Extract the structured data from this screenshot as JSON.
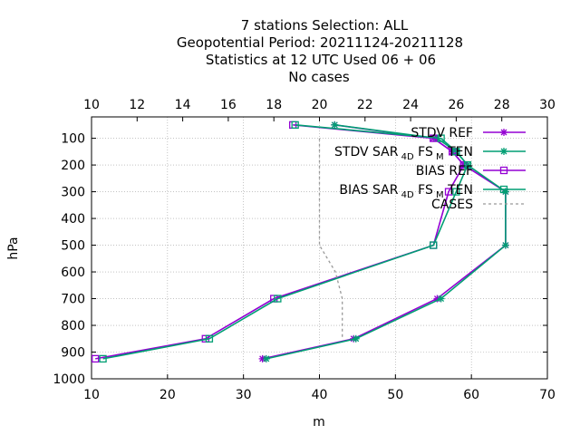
{
  "chart_data": {
    "type": "line",
    "title_lines": [
      "7 stations Selection: ALL",
      "Geopotential  Period: 20211124-20211128",
      "Statistics at 12 UTC  Used  06 + 06",
      "No cases"
    ],
    "xlabel": "m",
    "ylabel": "hPa",
    "xlim": [
      10,
      70
    ],
    "ylim": [
      1000,
      20
    ],
    "y_reversed": true,
    "x_ticks": [
      "10",
      "20",
      "30",
      "40",
      "50",
      "60",
      "70"
    ],
    "y_ticks": [
      "100",
      "200",
      "300",
      "400",
      "500",
      "600",
      "700",
      "800",
      "900",
      "1000"
    ],
    "x2_label": "",
    "x2lim": [
      10,
      30
    ],
    "x2_ticks": [
      "10",
      "12",
      "14",
      "16",
      "18",
      "20",
      "22",
      "24",
      "26",
      "28",
      "30"
    ],
    "grid": true,
    "legend_position": "top-right",
    "series": [
      {
        "name": "STDV REF",
        "legend": [
          {
            "t": "STDV REF"
          }
        ],
        "color": "#9400d3",
        "marker": "star",
        "axis": "x1",
        "points": [
          [
            42.0,
            50
          ],
          [
            55.0,
            100
          ],
          [
            57.5,
            150
          ],
          [
            59.0,
            200
          ],
          [
            64.5,
            300
          ],
          [
            64.5,
            500
          ],
          [
            55.5,
            700
          ],
          [
            44.5,
            850
          ],
          [
            32.5,
            925
          ]
        ]
      },
      {
        "name": "STDV SAR 4D FS M TEN",
        "legend": [
          {
            "t": "STDV SAR"
          },
          {
            "t": "4D",
            "sub": true
          },
          {
            "t": "FS"
          },
          {
            "t": "M",
            "sub": true
          },
          {
            "t": "TEN"
          }
        ],
        "color": "#009e73",
        "marker": "star",
        "axis": "x1",
        "points": [
          [
            42.0,
            50
          ],
          [
            55.5,
            100
          ],
          [
            58.0,
            150
          ],
          [
            59.5,
            200
          ],
          [
            64.5,
            300
          ],
          [
            64.5,
            500
          ],
          [
            56.0,
            700
          ],
          [
            44.8,
            850
          ],
          [
            33.0,
            925
          ]
        ]
      },
      {
        "name": "BIAS REF",
        "legend": [
          {
            "t": "BIAS REF"
          }
        ],
        "color": "#9400d3",
        "marker": "square",
        "axis": "x1",
        "points": [
          [
            36.5,
            50
          ],
          [
            55.0,
            100
          ],
          [
            57.5,
            150
          ],
          [
            59.0,
            200
          ],
          [
            57.0,
            300
          ],
          [
            55.0,
            500
          ],
          [
            34.0,
            700
          ],
          [
            25.0,
            850
          ],
          [
            10.5,
            925
          ]
        ]
      },
      {
        "name": "BIAS SAR 4D FS M TEN",
        "legend": [
          {
            "t": "BIAS SAR"
          },
          {
            "t": "4D",
            "sub": true
          },
          {
            "t": "FS"
          },
          {
            "t": "M",
            "sub": true
          },
          {
            "t": "TEN"
          }
        ],
        "color": "#009e73",
        "marker": "square",
        "axis": "x1",
        "points": [
          [
            36.8,
            50
          ],
          [
            56.0,
            100
          ],
          [
            58.0,
            150
          ],
          [
            59.5,
            200
          ],
          [
            58.0,
            300
          ],
          [
            55.0,
            500
          ],
          [
            34.5,
            700
          ],
          [
            25.5,
            850
          ],
          [
            11.5,
            925
          ]
        ]
      },
      {
        "name": "CASES",
        "legend": [
          {
            "t": "CASES"
          }
        ],
        "color": "#999999",
        "marker": "none",
        "dashed": true,
        "axis": "x2",
        "points": [
          [
            20.0,
            100
          ],
          [
            20.0,
            200
          ],
          [
            20.0,
            300
          ],
          [
            20.0,
            400
          ],
          [
            20.0,
            500
          ],
          [
            20.7,
            600
          ],
          [
            21.0,
            700
          ],
          [
            21.0,
            800
          ],
          [
            21.0,
            850
          ]
        ]
      }
    ]
  }
}
